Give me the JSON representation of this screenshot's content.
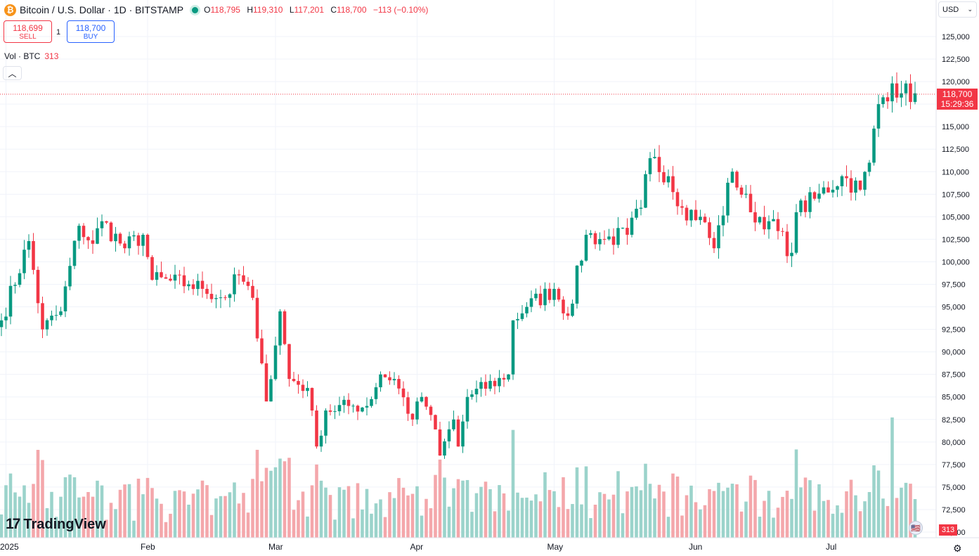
{
  "header": {
    "coin_icon": "bitcoin-icon",
    "symbol_title": "Bitcoin / U.S. Dollar · 1D · BITSTAMP",
    "status": "market-open-dot",
    "ohlc": {
      "o_label": "O",
      "o": "118,795",
      "h_label": "H",
      "h": "119,310",
      "l_label": "L",
      "l": "117,201",
      "c_label": "C",
      "c": "118,700",
      "change": "−113 (−0.10%)"
    }
  },
  "trade": {
    "sell_price": "118,699",
    "sell_label": "SELL",
    "spread": "1",
    "buy_price": "118,700",
    "buy_label": "BUY"
  },
  "volume_legend": {
    "label": "Vol · BTC",
    "value": "313"
  },
  "toolbar": {
    "collapse_icon": "chevron-up-icon",
    "currency": "USD",
    "currency_icon": "chevron-down-icon"
  },
  "price_scale": {
    "labels": [
      "125,000",
      "122,500",
      "120,000",
      "117,500",
      "115,000",
      "112,500",
      "110,000",
      "107,500",
      "105,000",
      "102,500",
      "100,000",
      "97,500",
      "95,000",
      "92,500",
      "90,000",
      "87,500",
      "85,000",
      "82,500",
      "80,000",
      "77,500",
      "75,000",
      "72,500",
      "70,000"
    ],
    "last_price": "118,700",
    "countdown": "15:29:36",
    "volume_value": "313"
  },
  "time_scale": {
    "labels": [
      "2025",
      "Feb",
      "Mar",
      "Apr",
      "May",
      "Jun",
      "Jul"
    ]
  },
  "branding": {
    "logo_text": "TradingView",
    "logo_icon": "tradingview-logo-icon"
  },
  "colors": {
    "up": "#089981",
    "down": "#f23645",
    "vol_up": "#9bd3cb",
    "vol_down": "#f4a7ab",
    "grid": "#f0f3fa",
    "accent": "#2962ff"
  },
  "chart_data": {
    "type": "candlestick",
    "title": "Bitcoin / U.S. Dollar · 1D · BITSTAMP",
    "ylim": [
      70000,
      126000
    ],
    "x_range": [
      "2024-12-31",
      "2025-07-19"
    ],
    "volume_ylim": [
      0,
      9000
    ],
    "anchors": [
      [
        "2024-12-31",
        93500
      ],
      [
        "2025-01-06",
        102300
      ],
      [
        "2025-01-09",
        92500
      ],
      [
        "2025-01-13",
        94500
      ],
      [
        "2025-01-17",
        104000
      ],
      [
        "2025-01-20",
        102000
      ],
      [
        "2025-01-22",
        104500
      ],
      [
        "2025-01-27",
        101500
      ],
      [
        "2025-01-31",
        103000
      ],
      [
        "2025-02-02",
        98000
      ],
      [
        "2025-02-10",
        97500
      ],
      [
        "2025-02-13",
        97000
      ],
      [
        "2025-02-18",
        96000
      ],
      [
        "2025-02-21",
        98500
      ],
      [
        "2025-02-24",
        96000
      ],
      [
        "2025-02-25",
        91500
      ],
      [
        "2025-02-27",
        84500
      ],
      [
        "2025-03-02",
        94500
      ],
      [
        "2025-03-04",
        87000
      ],
      [
        "2025-03-08",
        86000
      ],
      [
        "2025-03-10",
        79500
      ],
      [
        "2025-03-12",
        83500
      ],
      [
        "2025-03-17",
        84000
      ],
      [
        "2025-03-21",
        84000
      ],
      [
        "2025-03-24",
        87500
      ],
      [
        "2025-03-27",
        87000
      ],
      [
        "2025-03-31",
        82500
      ],
      [
        "2025-04-02",
        85000
      ],
      [
        "2025-04-04",
        83000
      ],
      [
        "2025-04-06",
        78500
      ],
      [
        "2025-04-09",
        82500
      ],
      [
        "2025-04-10",
        79500
      ],
      [
        "2025-04-12",
        85000
      ],
      [
        "2025-04-21",
        87500
      ],
      [
        "2025-04-22",
        93500
      ],
      [
        "2025-04-25",
        95000
      ],
      [
        "2025-05-01",
        97000
      ],
      [
        "2025-05-04",
        94000
      ],
      [
        "2025-05-08",
        103000
      ],
      [
        "2025-05-12",
        102500
      ],
      [
        "2025-05-17",
        103000
      ],
      [
        "2025-05-20",
        106000
      ],
      [
        "2025-05-22",
        111500
      ],
      [
        "2025-05-26",
        109500
      ],
      [
        "2025-05-29",
        106000
      ],
      [
        "2025-06-02",
        105000
      ],
      [
        "2025-06-05",
        101500
      ],
      [
        "2025-06-09",
        110000
      ],
      [
        "2025-06-13",
        105500
      ],
      [
        "2025-06-17",
        104500
      ],
      [
        "2025-06-22",
        101000
      ],
      [
        "2025-06-23",
        105500
      ],
      [
        "2025-06-27",
        107000
      ],
      [
        "2025-07-03",
        109500
      ],
      [
        "2025-07-07",
        108000
      ],
      [
        "2025-07-09",
        111000
      ],
      [
        "2025-07-11",
        117500
      ],
      [
        "2025-07-14",
        119800
      ],
      [
        "2025-07-16",
        118700
      ],
      [
        "2025-07-19",
        118700
      ]
    ],
    "volume_spikes": [
      [
        "2025-03-01",
        4100
      ],
      [
        "2025-04-07",
        3500
      ],
      [
        "2025-07-14",
        7000
      ]
    ]
  }
}
